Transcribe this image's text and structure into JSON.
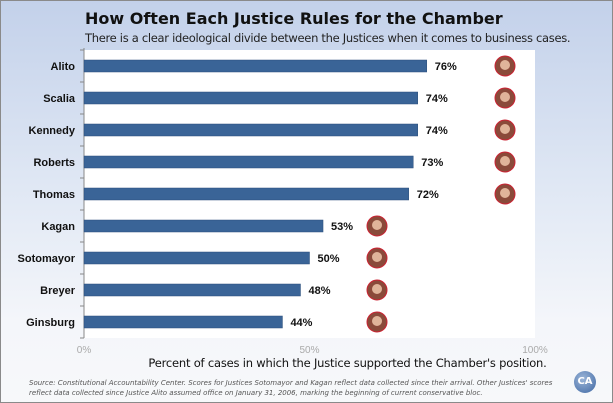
{
  "chart_data": {
    "type": "bar",
    "orientation": "horizontal",
    "title": "How Often Each Justice Rules for the Chamber",
    "subtitle": "There is a clear ideological divide between the Justices when it comes to business cases.",
    "categories": [
      "Alito",
      "Scalia",
      "Kennedy",
      "Roberts",
      "Thomas",
      "Kagan",
      "Sotomayor",
      "Breyer",
      "Ginsburg"
    ],
    "values": [
      76,
      74,
      74,
      73,
      72,
      53,
      50,
      48,
      44
    ],
    "data_labels": [
      "76%",
      "74%",
      "74%",
      "73%",
      "72%",
      "53%",
      "50%",
      "48%",
      "44%"
    ],
    "xlabel": "Percent of cases in which the Justice supported the Chamber's position.",
    "xlim": [
      0,
      100
    ],
    "xticks": [
      "0%",
      "50%",
      "100%"
    ],
    "bar_color": "#3a6497",
    "source": "Source: Constitutional Accountability Center. Scores for Justices Sotomayor and Kagan reflect data collected since their arrival. Other Justices' scores reflect data collected since Justice Alito assumed office on January 31, 2006, marking the beginning of current conservative bloc.",
    "logo": "CA"
  }
}
